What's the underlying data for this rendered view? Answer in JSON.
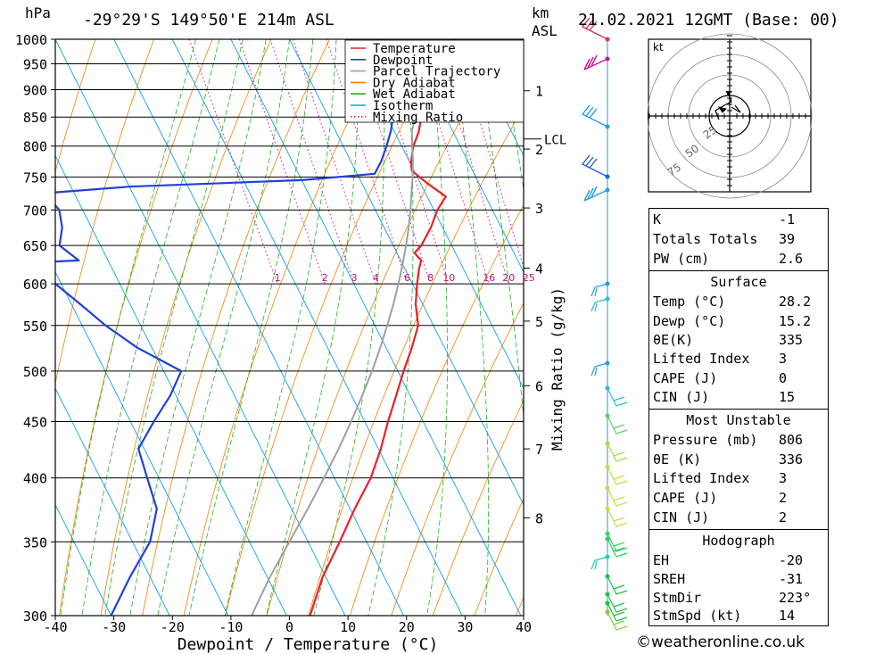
{
  "header": {
    "pressure_unit": "hPa",
    "location": "-29°29'S 149°50'E 214m ASL",
    "height_unit_line1": "km",
    "height_unit_line2": "ASL",
    "datetime": "21.02.2021 12GMT (Base: 00)"
  },
  "chart_data": {
    "type": "line",
    "subtype": "skew-t log-p",
    "xlabel": "Dewpoint / Temperature (°C)",
    "ylabel": "hPa",
    "right_axis_label": "Mixing Ratio (g/kg)",
    "x_ticks": [
      -40,
      -30,
      -20,
      -10,
      0,
      10,
      20,
      30,
      40
    ],
    "y_ticks": [
      300,
      350,
      400,
      450,
      500,
      550,
      600,
      650,
      700,
      750,
      800,
      850,
      900,
      950,
      1000
    ],
    "ylim": [
      1000,
      300
    ],
    "xlim": [
      -40,
      40
    ],
    "km_ticks": [
      {
        "label": "1",
        "p": 898
      },
      {
        "label": "2",
        "p": 795
      },
      {
        "label": "3",
        "p": 703
      },
      {
        "label": "4",
        "p": 620
      },
      {
        "label": "5",
        "p": 555
      },
      {
        "label": "6",
        "p": 485
      },
      {
        "label": "7",
        "p": 425
      },
      {
        "label": "8",
        "p": 368
      }
    ],
    "lcl": {
      "label": "LCL",
      "p": 812
    },
    "mixing_ratio_labels": [
      "1",
      "2",
      "3",
      "4",
      "6",
      "8",
      "10",
      "16",
      "20",
      "25"
    ],
    "mixing_ratio_values": [
      1,
      2,
      3,
      4,
      6,
      8,
      10,
      16,
      20,
      25
    ],
    "legend": [
      {
        "name": "Temperature",
        "color": "#e8202a",
        "style": "solid"
      },
      {
        "name": "Dewpoint",
        "color": "#2040d8",
        "style": "solid"
      },
      {
        "name": "Parcel Trajectory",
        "color": "#a0a0a0",
        "style": "solid"
      },
      {
        "name": "Dry Adiabat",
        "color": "#f08000",
        "style": "solid"
      },
      {
        "name": "Wet Adiabat",
        "color": "#20b020",
        "style": "solid"
      },
      {
        "name": "Isotherm",
        "color": "#10a0e8",
        "style": "solid"
      },
      {
        "name": "Mixing Ratio",
        "color": "#d0108a",
        "style": "dotted"
      }
    ],
    "series": [
      {
        "name": "Temperature",
        "color": "#e8202a",
        "points": [
          [
            1000,
            28.2
          ],
          [
            990,
            27.0
          ],
          [
            975,
            24.5
          ],
          [
            950,
            21.5
          ],
          [
            925,
            19.0
          ],
          [
            900,
            17.6
          ],
          [
            875,
            17.2
          ],
          [
            850,
            15.8
          ],
          [
            825,
            14.2
          ],
          [
            800,
            12.0
          ],
          [
            775,
            10.3
          ],
          [
            760,
            9.6
          ],
          [
            740,
            11.2
          ],
          [
            720,
            13.2
          ],
          [
            700,
            10.6
          ],
          [
            675,
            8.0
          ],
          [
            650,
            4.8
          ],
          [
            640,
            3.0
          ],
          [
            630,
            3.5
          ],
          [
            620,
            2.5
          ],
          [
            600,
            0.8
          ],
          [
            575,
            -1.2
          ],
          [
            550,
            -2.6
          ],
          [
            525,
            -5.6
          ],
          [
            500,
            -9.0
          ],
          [
            475,
            -12.4
          ],
          [
            450,
            -16.0
          ],
          [
            425,
            -19.6
          ],
          [
            400,
            -23.8
          ],
          [
            375,
            -29.2
          ],
          [
            350,
            -34.6
          ],
          [
            325,
            -40.6
          ],
          [
            300,
            -46.0
          ]
        ]
      },
      {
        "name": "Dewpoint",
        "color": "#2040d8",
        "points": [
          [
            1000,
            15.2
          ],
          [
            975,
            14.9
          ],
          [
            950,
            14.2
          ],
          [
            925,
            13.6
          ],
          [
            900,
            12.8
          ],
          [
            875,
            12.2
          ],
          [
            850,
            11.0
          ],
          [
            825,
            9.4
          ],
          [
            800,
            7.4
          ],
          [
            775,
            5.2
          ],
          [
            755,
            3.0
          ],
          [
            745,
            -10.0
          ],
          [
            735,
            -40.0
          ],
          [
            725,
            -55.0
          ],
          [
            700,
            -54.0
          ],
          [
            675,
            -55.0
          ],
          [
            650,
            -57.0
          ],
          [
            630,
            -55.0
          ],
          [
            625,
            -69.0
          ],
          [
            600,
            -61.0
          ],
          [
            575,
            -58.5
          ],
          [
            550,
            -56.0
          ],
          [
            525,
            -52.5
          ],
          [
            500,
            -47.0
          ],
          [
            475,
            -51.0
          ],
          [
            450,
            -56.0
          ],
          [
            425,
            -61.0
          ],
          [
            400,
            -62.0
          ],
          [
            375,
            -63.0
          ],
          [
            350,
            -67.0
          ],
          [
            325,
            -73.5
          ],
          [
            300,
            -80.0
          ]
        ]
      },
      {
        "name": "Parcel Trajectory",
        "color": "#a0a0a0",
        "points": [
          [
            1000,
            28.2
          ],
          [
            975,
            25.8
          ],
          [
            950,
            23.4
          ],
          [
            925,
            21.2
          ],
          [
            900,
            19.0
          ],
          [
            875,
            16.8
          ],
          [
            850,
            14.8
          ],
          [
            825,
            13.0
          ],
          [
            812,
            12.4
          ],
          [
            800,
            11.8
          ],
          [
            775,
            10.6
          ],
          [
            750,
            9.2
          ],
          [
            725,
            7.6
          ],
          [
            700,
            6.0
          ],
          [
            675,
            4.2
          ],
          [
            650,
            2.2
          ],
          [
            625,
            0.0
          ],
          [
            600,
            -2.4
          ],
          [
            575,
            -5.0
          ],
          [
            550,
            -7.9
          ],
          [
            525,
            -11.0
          ],
          [
            500,
            -14.4
          ],
          [
            475,
            -18.2
          ],
          [
            450,
            -22.3
          ],
          [
            425,
            -26.8
          ],
          [
            400,
            -31.8
          ],
          [
            375,
            -37.2
          ],
          [
            350,
            -43.2
          ],
          [
            325,
            -49.6
          ],
          [
            300,
            -56.0
          ]
        ]
      }
    ],
    "wind_profile_note": "wind barbs drawn along right-side column"
  },
  "hodograph": {
    "unit_label": "kt",
    "ring_labels": [
      "25",
      "50",
      "75"
    ]
  },
  "indices": {
    "rows": [
      {
        "key": "K",
        "value": "-1"
      },
      {
        "key": "Totals Totals",
        "value": "39"
      },
      {
        "key": "PW (cm)",
        "value": "2.6"
      }
    ]
  },
  "surface": {
    "title": "Surface",
    "rows": [
      {
        "key": "Temp (°C)",
        "value": "28.2"
      },
      {
        "key": "Dewp (°C)",
        "value": "15.2"
      },
      {
        "key": "θE(K)",
        "value": "335"
      },
      {
        "key": "Lifted Index",
        "value": "3"
      },
      {
        "key": "CAPE (J)",
        "value": "0"
      },
      {
        "key": "CIN (J)",
        "value": "15"
      }
    ]
  },
  "most_unstable": {
    "title": "Most Unstable",
    "rows": [
      {
        "key": "Pressure (mb)",
        "value": "806"
      },
      {
        "key": "θE (K)",
        "value": "336"
      },
      {
        "key": "Lifted Index",
        "value": "3"
      },
      {
        "key": "CAPE (J)",
        "value": "2"
      },
      {
        "key": "CIN (J)",
        "value": "2"
      }
    ]
  },
  "hodograph_stats": {
    "title": "Hodograph",
    "rows": [
      {
        "key": "EH",
        "value": "-20"
      },
      {
        "key": "SREH",
        "value": "-31"
      },
      {
        "key": "StmDir",
        "value": "223°"
      },
      {
        "key": "StmSpd (kt)",
        "value": "14"
      }
    ]
  },
  "footer": {
    "copyright_symbol": "©",
    "site": "weatheronline.co.uk"
  }
}
